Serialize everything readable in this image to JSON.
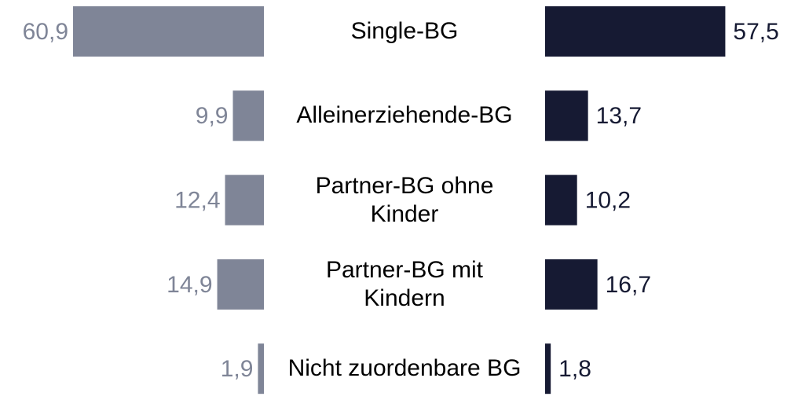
{
  "chart_data": {
    "type": "butterfly",
    "categories": [
      "Single-BG",
      "Alleinerziehende-BG",
      "Partner-BG ohne Kinder",
      "Partner-BG mit Kindern",
      "Nicht zuordenbare BG"
    ],
    "series": [
      {
        "color": "#7f8597",
        "values": [
          60.9,
          9.9,
          12.4,
          14.9,
          1.9
        ],
        "value_labels": [
          "60,9",
          "9,9",
          "12,4",
          "14,9",
          "1,9"
        ]
      },
      {
        "color": "#161a33",
        "values": [
          57.5,
          13.7,
          10.2,
          16.7,
          1.8
        ],
        "value_labels": [
          "57,5",
          "13,7",
          "10,2",
          "16,7",
          "1,8"
        ]
      }
    ]
  }
}
